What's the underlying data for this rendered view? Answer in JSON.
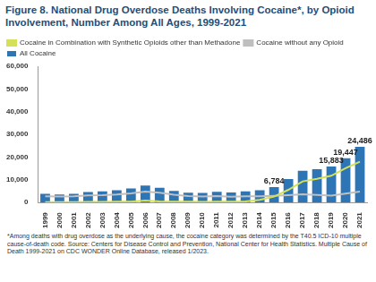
{
  "chart_data": {
    "type": "bar",
    "title": "Figure 8. National Drug Overdose Deaths Involving Cocaine*, by Opioid Involvement, Number Among All Ages, 1999-2021",
    "footnote": "*Among deaths with drug overdose as the underlying cause, the cocaine category was determined by the T40.5 ICD-10 multiple cause-of-death code. Source: Centers for Disease Control and Prevention, National Center for Health Statistics. Multiple Cause of Death 1999-2021 on CDC WONDER Online Database, released 1/2023.",
    "categories": [
      "1999",
      "2000",
      "2001",
      "2002",
      "2003",
      "2004",
      "2005",
      "2006",
      "2007",
      "2008",
      "2009",
      "2010",
      "2011",
      "2012",
      "2013",
      "2014",
      "2015",
      "2016",
      "2017",
      "2018",
      "2019",
      "2020",
      "2021"
    ],
    "series": [
      {
        "name": "All Cocaine",
        "type": "bar",
        "color": "#2e75b6",
        "data_labels": true,
        "values": [
          3822,
          3544,
          3833,
          4599,
          4927,
          5443,
          6208,
          7448,
          6512,
          5129,
          4350,
          4183,
          4681,
          4404,
          4944,
          5415,
          6784,
          10375,
          13942,
          14666,
          15883,
          19447,
          24486
        ],
        "value_labels": [
          null,
          null,
          null,
          null,
          null,
          null,
          null,
          null,
          null,
          null,
          null,
          null,
          null,
          null,
          null,
          null,
          "6,784",
          null,
          null,
          null,
          "15,883",
          "19,447",
          "24,486"
        ]
      },
      {
        "name": "Cocaine in Combination with Synthetic Opioids other than Methadone",
        "type": "line",
        "color": "#d4e157",
        "line_style": "solid",
        "values": [
          180,
          160,
          190,
          230,
          300,
          340,
          380,
          900,
          450,
          350,
          340,
          300,
          330,
          350,
          500,
          1200,
          2600,
          5600,
          9300,
          10400,
          11800,
          15100,
          18000
        ]
      },
      {
        "name": "Cocaine without any Opioid",
        "type": "line",
        "color": "#bfbfbf",
        "line_style": "solid",
        "values": [
          2700,
          2600,
          2700,
          3100,
          3200,
          3500,
          4000,
          4800,
          4300,
          3400,
          2800,
          2600,
          2800,
          2500,
          2700,
          2700,
          2900,
          3200,
          3600,
          3300,
          3000,
          3900,
          4800
        ]
      }
    ],
    "ylim": [
      0,
      60000
    ],
    "yticks": [
      0,
      {
        "value": 10000,
        "label": "10,000"
      },
      {
        "value": 20000,
        "label": "20,000"
      },
      {
        "value": 30000,
        "label": "30,000"
      },
      {
        "value": 40000,
        "label": "40,000"
      },
      {
        "value": 50000,
        "label": "50,000"
      },
      {
        "value": 60000,
        "label": "60,000"
      }
    ],
    "grid": false,
    "legend": "top left"
  }
}
